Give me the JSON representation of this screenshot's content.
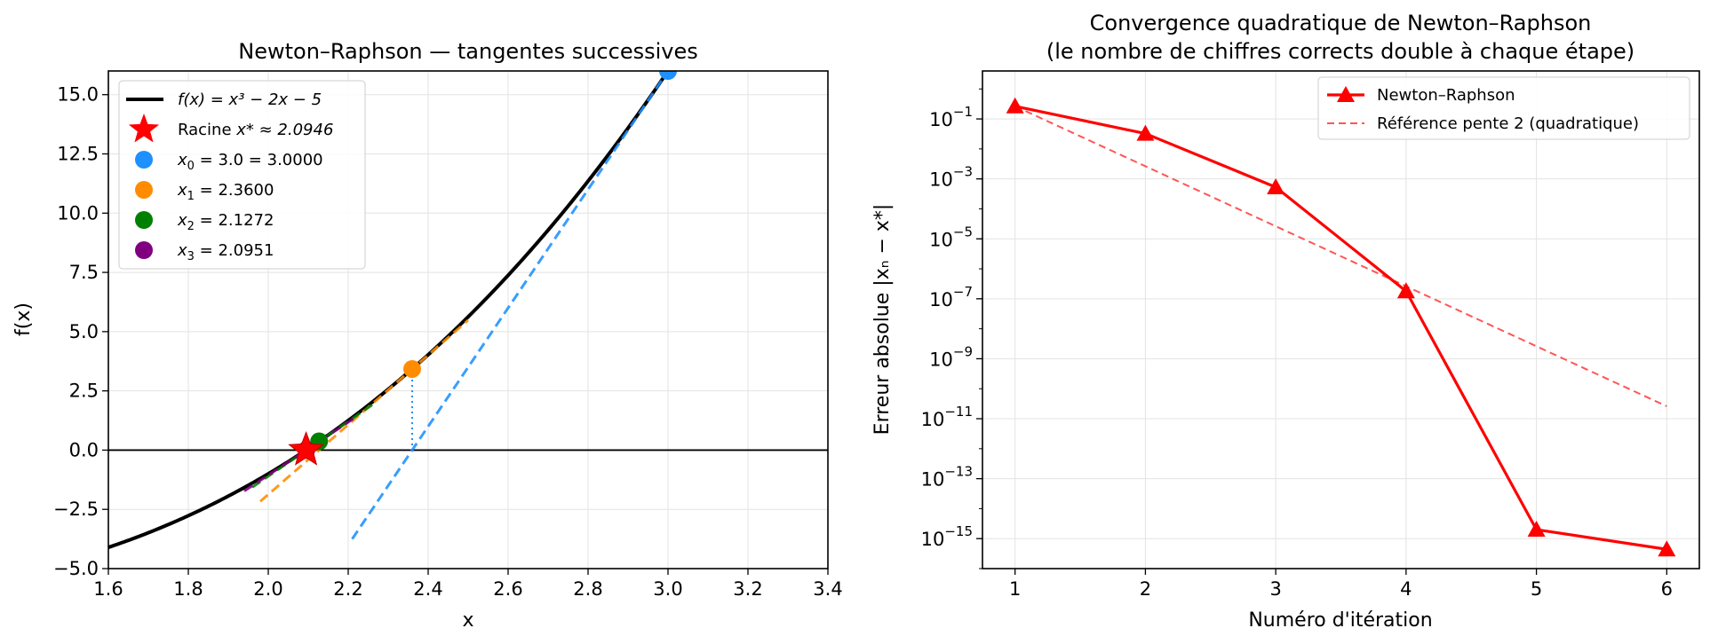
{
  "chart_data": [
    {
      "type": "line",
      "title": "Newton–Raphson — tangentes successives",
      "xlabel": "x",
      "ylabel": "f(x)",
      "xlim": [
        1.6,
        3.4
      ],
      "ylim": [
        -5.0,
        16.0
      ],
      "xticks": [
        "1.6",
        "1.8",
        "2.0",
        "2.2",
        "2.4",
        "2.6",
        "2.8",
        "3.0",
        "3.2",
        "3.4"
      ],
      "xtick_values": [
        1.6,
        1.8,
        2.0,
        2.2,
        2.4,
        2.6,
        2.8,
        3.0,
        3.2,
        3.4
      ],
      "yticks": [
        "−5.0",
        "−2.5",
        "0.0",
        "2.5",
        "5.0",
        "7.5",
        "10.0",
        "12.5",
        "15.0"
      ],
      "ytick_values": [
        -5.0,
        -2.5,
        0.0,
        2.5,
        5.0,
        7.5,
        10.0,
        12.5,
        15.0
      ],
      "grid": true,
      "legend_position": "top-left",
      "function": "x^3 - 2x - 5",
      "root": 2.0946,
      "iterates": [
        {
          "name": "x0",
          "x": 3.0,
          "color": "#1e90ff"
        },
        {
          "name": "x1",
          "x": 2.36,
          "color": "#ff8c00"
        },
        {
          "name": "x2",
          "x": 2.1272,
          "color": "#008000"
        },
        {
          "name": "x3",
          "x": 2.0951,
          "color": "#800080"
        }
      ],
      "tangents": [
        {
          "x0": 3.0,
          "x_from": 2.21,
          "x_to": 3.0,
          "color": "#1e90ff"
        },
        {
          "x0": 2.36,
          "x_from": 1.98,
          "x_to": 2.5,
          "color": "#ff8c00"
        },
        {
          "x0": 2.1272,
          "x_from": 1.96,
          "x_to": 2.26,
          "color": "#008000"
        },
        {
          "x0": 2.0951,
          "x_from": 1.94,
          "x_to": 2.22,
          "color": "#800080"
        }
      ],
      "legend": [
        {
          "label_math": "f(x) = x³ − 2x − 5",
          "kind": "line",
          "color": "#000000"
        },
        {
          "label_prefix": "Racine ",
          "label_math": "x* ≈ 2.0946",
          "kind": "star",
          "color": "#ff0000"
        },
        {
          "sub": "0",
          "label": " = 3.0 = 3.0000",
          "kind": "dot",
          "color": "#1e90ff"
        },
        {
          "sub": "1",
          "label": " = 2.3600",
          "kind": "dot",
          "color": "#ff8c00"
        },
        {
          "sub": "2",
          "label": " = 2.1272",
          "kind": "dot",
          "color": "#008000"
        },
        {
          "sub": "3",
          "label": " = 2.0951",
          "kind": "dot",
          "color": "#800080"
        }
      ]
    },
    {
      "type": "line",
      "title": "Convergence quadratique de Newton–Raphson",
      "subtitle": "(le nombre de chiffres corrects double à chaque étape)",
      "xlabel": "Numéro d'itération",
      "ylabel": "Erreur absolue |xₙ − x*|",
      "yscale": "log",
      "xlim": [
        0.75,
        6.25
      ],
      "ylim_log10": [
        -16.0,
        0.6
      ],
      "xticks": [
        "1",
        "2",
        "3",
        "4",
        "5",
        "6"
      ],
      "xtick_values": [
        1,
        2,
        3,
        4,
        5,
        6
      ],
      "ytick_exponents": [
        -1,
        -3,
        -5,
        -7,
        -9,
        -11,
        -13,
        -15
      ],
      "grid": true,
      "legend_position": "top-right",
      "series": [
        {
          "name": "Newton–Raphson",
          "x": [
            1,
            2,
            3,
            4,
            5,
            6
          ],
          "y": [
            0.265,
            0.0325,
            0.00053,
            1.8e-07,
            2e-15,
            4.4e-16
          ],
          "color": "#ff0000",
          "style": "solid",
          "marker": "triangle"
        },
        {
          "name": "Référence pente 2 (quadratique)",
          "x": [
            1,
            6
          ],
          "y": [
            0.265,
            2.6e-11
          ],
          "color": "#ff5555",
          "style": "dashed"
        }
      ]
    }
  ]
}
